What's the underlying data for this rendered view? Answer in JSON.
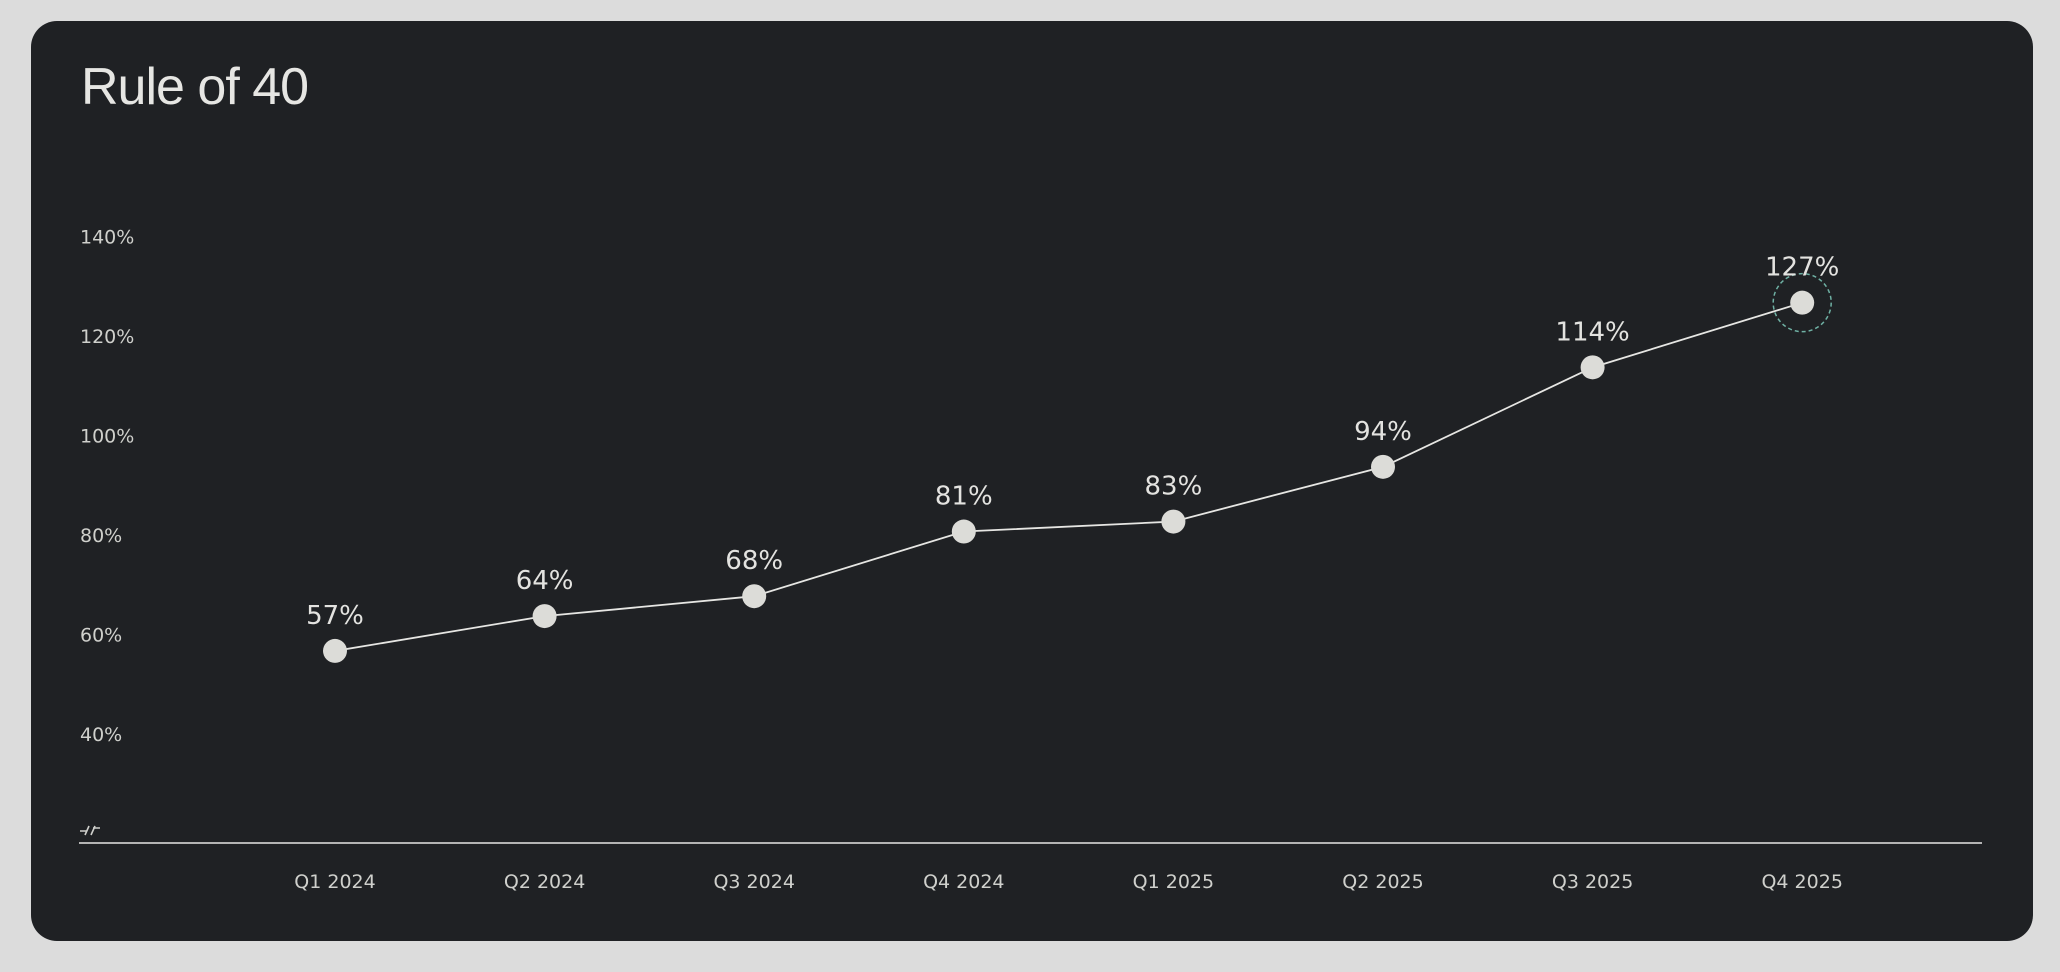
{
  "chart_data": {
    "type": "line",
    "title": "Rule of 40",
    "xlabel": "",
    "ylabel": "",
    "categories": [
      "Q1 2024",
      "Q2 2024",
      "Q3 2024",
      "Q4 2024",
      "Q1 2025",
      "Q2 2025",
      "Q3 2025",
      "Q4 2025"
    ],
    "values": [
      57,
      64,
      68,
      81,
      83,
      94,
      114,
      127
    ],
    "data_labels": [
      "57%",
      "64%",
      "68%",
      "81%",
      "83%",
      "94%",
      "114%",
      "127%"
    ],
    "ylim": [
      20,
      140
    ],
    "yticks": [
      40,
      60,
      80,
      100,
      120,
      140
    ],
    "ytick_labels": [
      "40%",
      "60%",
      "80%",
      "100%",
      "120%",
      "140%"
    ],
    "axis_break": true,
    "grid": false,
    "highlight_index": 7,
    "colors": {
      "background": "#1f2124",
      "line": "#e6e6e3",
      "point": "#dcdcd8",
      "highlight_ring": "#6fb1a4",
      "text": "#cfd0cc"
    }
  }
}
